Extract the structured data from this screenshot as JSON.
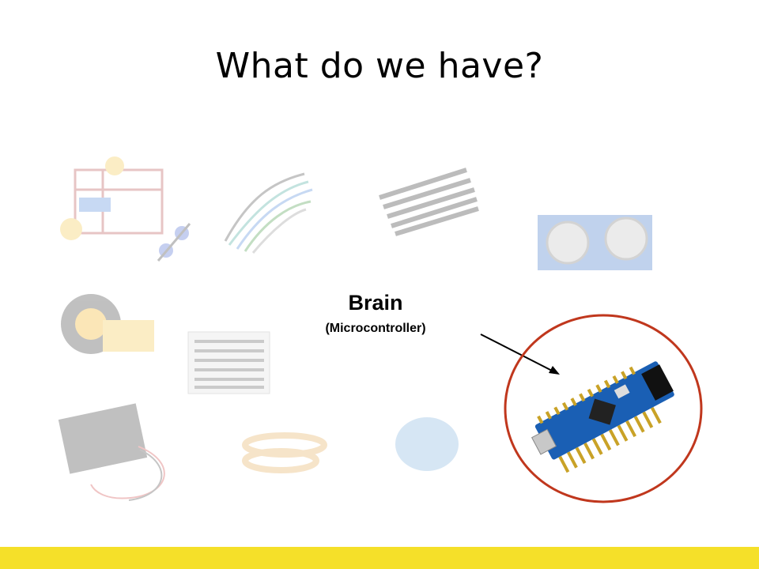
{
  "slide": {
    "title": "What do we have?",
    "highlight_label": "Brain",
    "highlight_sublabel": "(Microcontroller)"
  },
  "components": [
    {
      "name": "robot-chassis"
    },
    {
      "name": "jumper-wires"
    },
    {
      "name": "cable-ties"
    },
    {
      "name": "ultrasonic-sensor"
    },
    {
      "name": "motor-wheel"
    },
    {
      "name": "breadboard"
    },
    {
      "name": "battery-holder"
    },
    {
      "name": "rubber-bands"
    },
    {
      "name": "putty"
    },
    {
      "name": "arduino-nano"
    }
  ],
  "colors": {
    "accent_circle": "#c0371d",
    "footer": "#f5e029"
  }
}
